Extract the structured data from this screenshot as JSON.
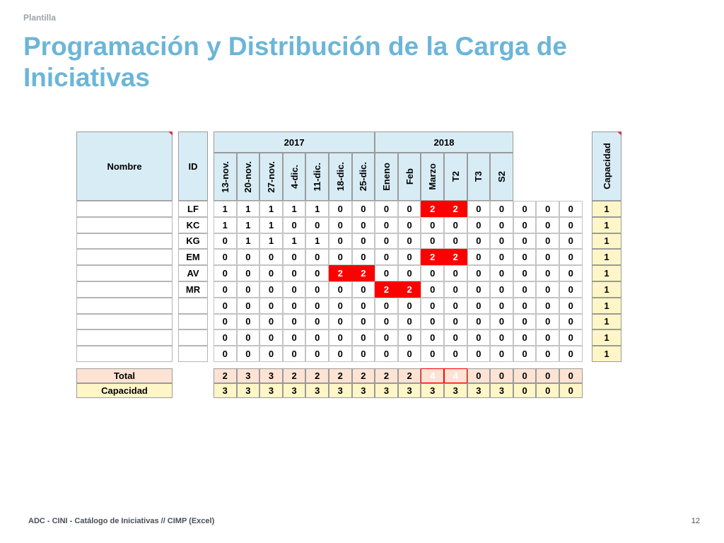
{
  "header": {
    "eyebrow": "Plantilla",
    "title": "Programación y Distribución de la Carga de Iniciativas"
  },
  "footer": {
    "left": "ADC - CINI  - Catálogo de Iniciativas // CIMP (Excel)",
    "page": "12"
  },
  "table": {
    "name_header": "Nombre",
    "id_header": "ID",
    "capacity_header": "Capacidad",
    "year_groups": [
      {
        "label": "2017",
        "span": 7
      },
      {
        "label": "2018",
        "span": 6
      }
    ],
    "columns": [
      "13-nov.",
      "20-nov.",
      "27-nov.",
      "4-dic.",
      "11-dic.",
      "18-dic.",
      "25-dic.",
      "Eneno",
      "Feb",
      "Marzo",
      "T2",
      "T3",
      "S2",
      "",
      "",
      ""
    ],
    "rows": [
      {
        "id": "LF",
        "values": [
          "1",
          "1",
          "1",
          "1",
          "1",
          "0",
          "0",
          "0",
          "0",
          "2",
          "2",
          "0",
          "0",
          "0",
          "0",
          "0"
        ],
        "capacity": "1"
      },
      {
        "id": "KC",
        "values": [
          "1",
          "1",
          "1",
          "0",
          "0",
          "0",
          "0",
          "0",
          "0",
          "0",
          "0",
          "0",
          "0",
          "0",
          "0",
          "0"
        ],
        "capacity": "1"
      },
      {
        "id": "KG",
        "values": [
          "0",
          "1",
          "1",
          "1",
          "1",
          "0",
          "0",
          "0",
          "0",
          "0",
          "0",
          "0",
          "0",
          "0",
          "0",
          "0"
        ],
        "capacity": "1"
      },
      {
        "id": "EM",
        "values": [
          "0",
          "0",
          "0",
          "0",
          "0",
          "0",
          "0",
          "0",
          "0",
          "2",
          "2",
          "0",
          "0",
          "0",
          "0",
          "0"
        ],
        "capacity": "1"
      },
      {
        "id": "AV",
        "values": [
          "0",
          "0",
          "0",
          "0",
          "0",
          "2",
          "2",
          "0",
          "0",
          "0",
          "0",
          "0",
          "0",
          "0",
          "0",
          "0"
        ],
        "capacity": "1"
      },
      {
        "id": "MR",
        "values": [
          "0",
          "0",
          "0",
          "0",
          "0",
          "0",
          "0",
          "2",
          "2",
          "0",
          "0",
          "0",
          "0",
          "0",
          "0",
          "0"
        ],
        "capacity": "1"
      },
      {
        "id": "",
        "values": [
          "0",
          "0",
          "0",
          "0",
          "0",
          "0",
          "0",
          "0",
          "0",
          "0",
          "0",
          "0",
          "0",
          "0",
          "0",
          "0"
        ],
        "capacity": "1"
      },
      {
        "id": "",
        "values": [
          "0",
          "0",
          "0",
          "0",
          "0",
          "0",
          "0",
          "0",
          "0",
          "0",
          "0",
          "0",
          "0",
          "0",
          "0",
          "0"
        ],
        "capacity": "1"
      },
      {
        "id": "",
        "values": [
          "0",
          "0",
          "0",
          "0",
          "0",
          "0",
          "0",
          "0",
          "0",
          "0",
          "0",
          "0",
          "0",
          "0",
          "0",
          "0"
        ],
        "capacity": "1"
      },
      {
        "id": "",
        "values": [
          "0",
          "0",
          "0",
          "0",
          "0",
          "0",
          "0",
          "0",
          "0",
          "0",
          "0",
          "0",
          "0",
          "0",
          "0",
          "0"
        ],
        "capacity": "1"
      }
    ],
    "total_label": "Total",
    "totals": [
      "2",
      "3",
      "3",
      "2",
      "2",
      "2",
      "2",
      "2",
      "2",
      "4",
      "4",
      "0",
      "0",
      "0",
      "0",
      "0"
    ],
    "capacity_label": "Capacidad",
    "capacity_totals": [
      "3",
      "3",
      "3",
      "3",
      "3",
      "3",
      "3",
      "3",
      "3",
      "3",
      "3",
      "3",
      "3",
      "0",
      "0",
      "0"
    ],
    "highlight_color": "#ff0000",
    "header_color": "#d8ecf5",
    "capacity_color": "#fff6c8",
    "total_color": "#fde3d3"
  }
}
